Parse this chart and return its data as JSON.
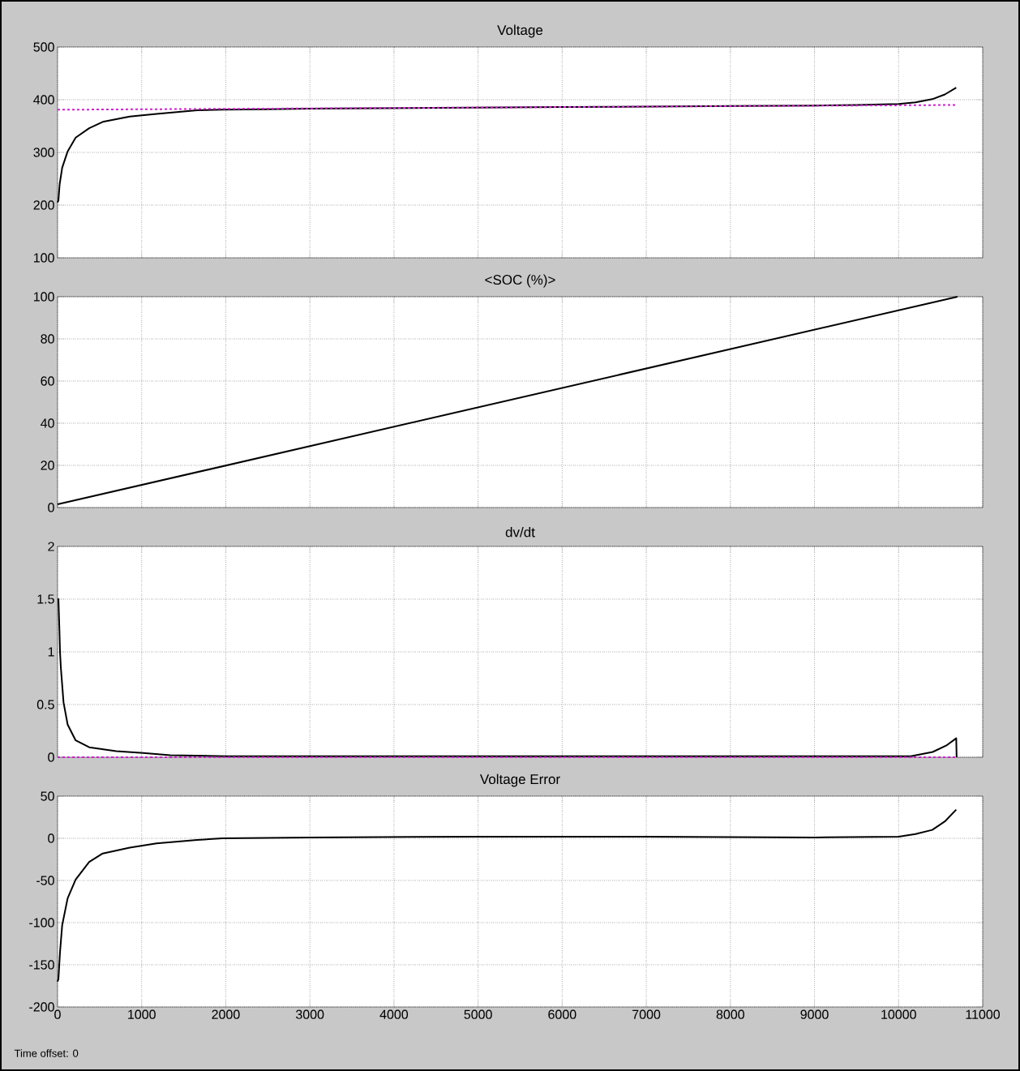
{
  "chart_data": [
    {
      "type": "line",
      "title": "Voltage",
      "xlim": [
        0,
        11000
      ],
      "xticks": [
        0,
        1000,
        2000,
        3000,
        4000,
        5000,
        6000,
        7000,
        8000,
        9000,
        10000,
        11000
      ],
      "ylim": [
        100,
        500
      ],
      "yticks": [
        100,
        200,
        300,
        400,
        500
      ],
      "grid": true,
      "tick_labels": "y",
      "series": [
        {
          "color": "#000000",
          "x": [
            0,
            10,
            25,
            55,
            120,
            215,
            376,
            537,
            858,
            1176,
            1660,
            1960,
            2500,
            3000,
            4000,
            5000,
            6000,
            7000,
            8000,
            9000,
            9500,
            10000,
            10200,
            10400,
            10550,
            10685
          ],
          "values": [
            205,
            209,
            240,
            271,
            302,
            328,
            346,
            358,
            368,
            373,
            380,
            381,
            382,
            383,
            384,
            385,
            386,
            387,
            388,
            389,
            390,
            392,
            395,
            401,
            410,
            423
          ]
        },
        {
          "color": "#d020d0",
          "line_style": "dashed",
          "x": [
            0,
            10700
          ],
          "values": [
            381,
            390
          ]
        }
      ]
    },
    {
      "type": "line",
      "title": "<SOC (%)>",
      "xlim": [
        0,
        11000
      ],
      "xticks": [
        0,
        1000,
        2000,
        3000,
        4000,
        5000,
        6000,
        7000,
        8000,
        9000,
        10000,
        11000
      ],
      "ylim": [
        0,
        100
      ],
      "yticks": [
        0,
        20,
        40,
        60,
        80,
        100
      ],
      "grid": true,
      "tick_labels": "y",
      "series": [
        {
          "color": "#000000",
          "x": [
            0,
            10700
          ],
          "values": [
            1.5,
            100
          ]
        }
      ]
    },
    {
      "type": "line",
      "title": "dv/dt",
      "xlim": [
        0,
        11000
      ],
      "xticks": [
        0,
        1000,
        2000,
        3000,
        4000,
        5000,
        6000,
        7000,
        8000,
        9000,
        10000,
        11000
      ],
      "ylim": [
        0,
        2
      ],
      "yticks": [
        0,
        0.5,
        1,
        1.5,
        2
      ],
      "grid": true,
      "tick_labels": "y",
      "series": [
        {
          "color": "#000000",
          "x": [
            0,
            10,
            22,
            29,
            39,
            71,
            120,
            215,
            376,
            697,
            1018,
            1340,
            2000,
            4000,
            6000,
            8000,
            10000,
            10145,
            10405,
            10565,
            10685,
            10690
          ],
          "values": [
            1.5,
            1.5,
            1.21,
            1.0,
            0.85,
            0.52,
            0.31,
            0.16,
            0.095,
            0.057,
            0.04,
            0.02,
            0.01,
            0.01,
            0.01,
            0.01,
            0.01,
            0.01,
            0.05,
            0.11,
            0.18,
            0
          ]
        },
        {
          "color": "#d020d0",
          "line_style": "dashed",
          "x": [
            0,
            10700
          ],
          "values": [
            0,
            0
          ]
        }
      ]
    },
    {
      "type": "line",
      "title": "Voltage Error",
      "xlim": [
        0,
        11000
      ],
      "xticks": [
        0,
        1000,
        2000,
        3000,
        4000,
        5000,
        6000,
        7000,
        8000,
        9000,
        10000,
        11000
      ],
      "ylim": [
        -200,
        50
      ],
      "yticks": [
        -200,
        -150,
        -100,
        -50,
        0,
        50
      ],
      "grid": true,
      "annotations": [
        "Time offset: 0"
      ],
      "series": [
        {
          "color": "#000000",
          "x": [
            0,
            10,
            29,
            55,
            120,
            215,
            376,
            537,
            858,
            1176,
            1660,
            1960,
            3000,
            5000,
            7000,
            9000,
            10000,
            10200,
            10400,
            10550,
            10685
          ],
          "values": [
            -170,
            -167,
            -135,
            -103,
            -71,
            -49,
            -28,
            -18,
            -11,
            -6,
            -2,
            0,
            1,
            2,
            2,
            1,
            2,
            5,
            10,
            20,
            34
          ]
        }
      ]
    }
  ]
}
